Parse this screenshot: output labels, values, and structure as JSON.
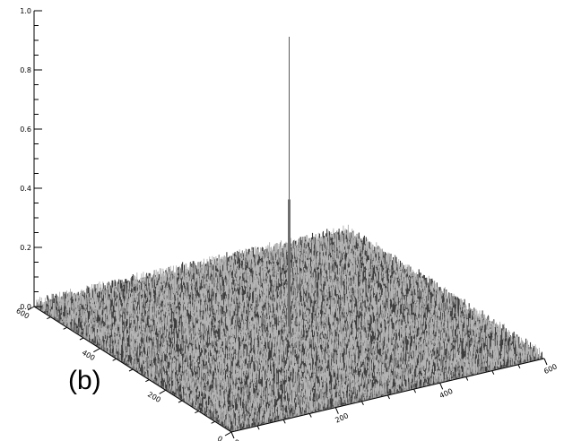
{
  "panel_label": "(b)",
  "chart_data": {
    "type": "surface",
    "title": "",
    "xlabel": "",
    "ylabel": "",
    "zlabel": "",
    "x_axis": {
      "range": [
        0,
        600
      ],
      "ticks": [
        "0",
        "200",
        "400",
        "600"
      ]
    },
    "y_axis": {
      "range": [
        0,
        600
      ],
      "ticks": [
        "0",
        "200",
        "400",
        "600"
      ]
    },
    "z_axis": {
      "range": [
        0,
        1.0
      ],
      "ticks": [
        "0.0",
        "0.2",
        "0.4",
        "0.6",
        "0.8",
        "1.0"
      ]
    },
    "background_level": 0.02,
    "peak": {
      "x": 300,
      "y": 300,
      "z": 1.0
    },
    "colors": {
      "surface": "#7a7a7a",
      "surface_dark": "#3c3c3c",
      "surface_light": "#b4b4b4",
      "axis": "#000000"
    }
  }
}
